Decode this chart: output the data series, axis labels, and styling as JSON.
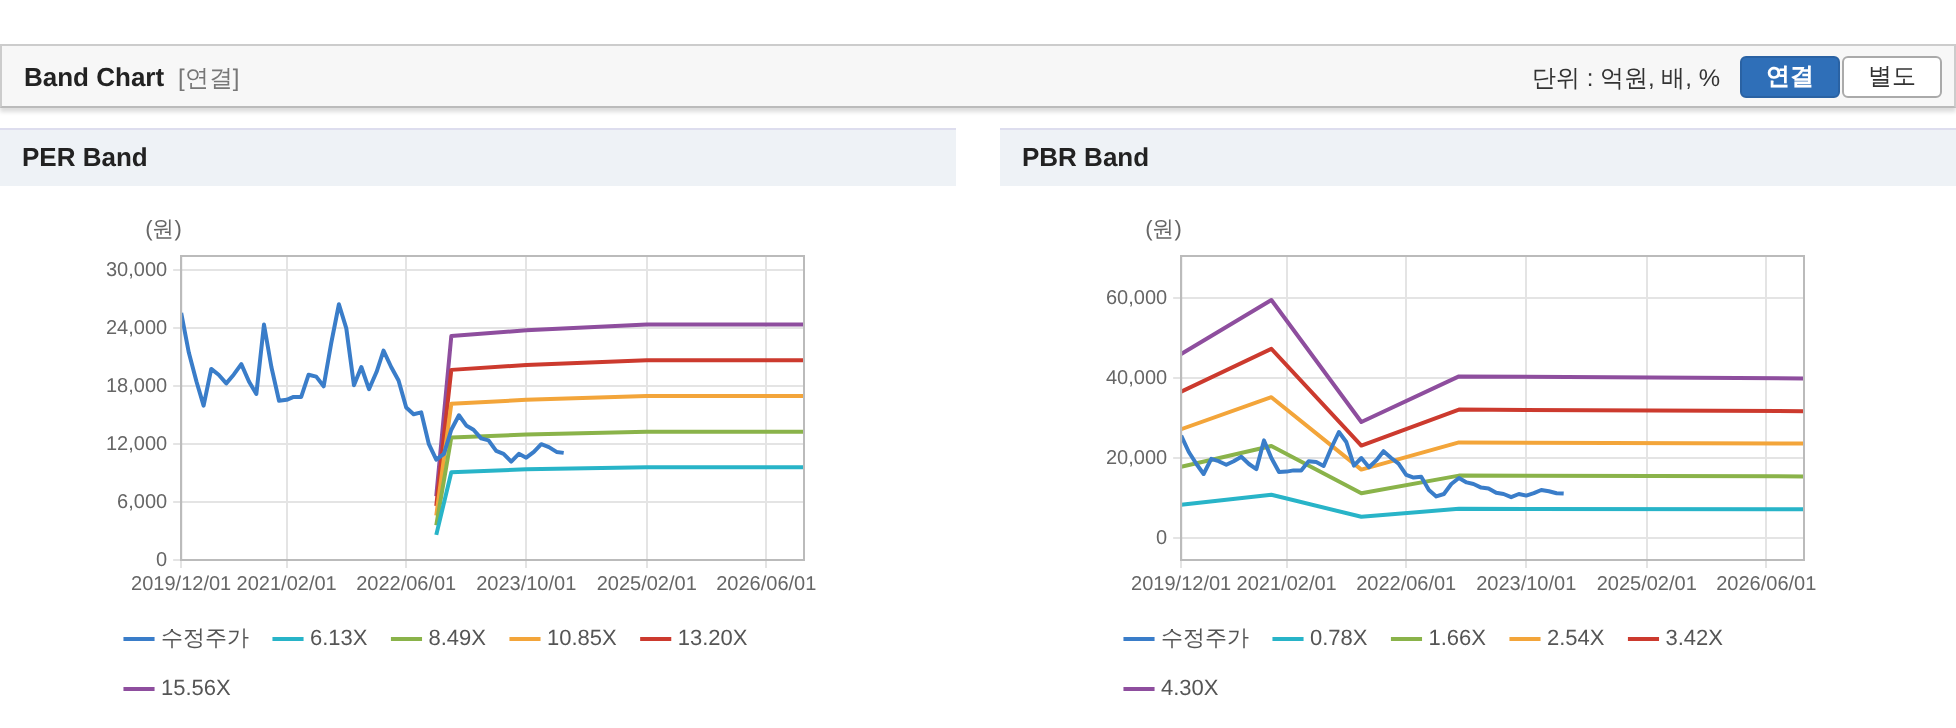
{
  "chart_data": [
    {
      "type": "other",
      "title": "Band Chart",
      "annotations": [
        "[연결]",
        "단위 : 억원, 배, %",
        "연결",
        "별도"
      ]
    },
    {
      "type": "line",
      "title": "PER Band",
      "ylabel": "(원)",
      "legend": "bottom",
      "grid": true,
      "marker": "none",
      "line_style": "solid",
      "x": [
        "2019-12-01",
        "2020-01-01",
        "2020-02-01",
        "2020-03-01",
        "2020-04-01",
        "2020-05-01",
        "2020-06-01",
        "2020-07-01",
        "2020-08-01",
        "2020-09-01",
        "2020-10-01",
        "2020-11-01",
        "2020-12-01",
        "2021-01-01",
        "2021-02-01",
        "2021-03-01",
        "2021-04-01",
        "2021-05-01",
        "2021-06-01",
        "2021-07-01",
        "2021-08-01",
        "2021-09-01",
        "2021-10-01",
        "2021-11-01",
        "2021-12-01",
        "2022-01-01",
        "2022-02-01",
        "2022-03-01",
        "2022-04-01",
        "2022-05-01",
        "2022-06-01",
        "2022-07-01",
        "2022-08-01",
        "2022-09-01",
        "2022-10-01",
        "2022-11-01",
        "2022-12-01",
        "2023-01-01",
        "2023-02-01",
        "2023-03-01",
        "2023-04-01",
        "2023-05-01",
        "2023-06-01",
        "2023-07-01",
        "2023-08-01",
        "2023-09-01",
        "2023-10-01",
        "2023-11-01",
        "2023-12-01",
        "2024-01-01",
        "2024-02-01",
        "2024-03-01"
      ],
      "series": [
        {
          "name": "수정주가",
          "color": "#3a7dc9",
          "values": [
            25600,
            21500,
            18500,
            16000,
            19800,
            19200,
            18300,
            19200,
            20300,
            18500,
            17200,
            24400,
            20000,
            16500,
            16600,
            16900,
            16900,
            19200,
            19000,
            18000,
            22500,
            26500,
            24000,
            18100,
            20000,
            17700,
            19500,
            21700,
            20000,
            18600,
            15800,
            15100,
            15300,
            12000,
            10400,
            11000,
            13500,
            15000,
            13900,
            13500,
            12600,
            12400,
            11300,
            11000,
            10200,
            11000,
            10600,
            11200,
            12000,
            11700,
            11200,
            11100
          ]
        },
        {
          "name": "6.13X",
          "color": "#28b4c8",
          "x": [
            "2022-10-01",
            "2022-12-01",
            "2023-10-01",
            "2025-02-01",
            "2026-11-01"
          ],
          "values": [
            2600,
            9100,
            9400,
            9600,
            9600
          ]
        },
        {
          "name": "8.49X",
          "color": "#8ab34a",
          "x": [
            "2022-10-01",
            "2022-12-01",
            "2023-10-01",
            "2025-02-01",
            "2026-11-01"
          ],
          "values": [
            3600,
            12700,
            13000,
            13300,
            13300
          ]
        },
        {
          "name": "10.85X",
          "color": "#f3a53a",
          "x": [
            "2022-10-01",
            "2022-12-01",
            "2023-10-01",
            "2025-02-01",
            "2026-11-01"
          ],
          "values": [
            4600,
            16200,
            16600,
            17000,
            17000
          ]
        },
        {
          "name": "13.20X",
          "color": "#cc3a2e",
          "x": [
            "2022-10-01",
            "2022-12-01",
            "2023-10-01",
            "2025-02-01",
            "2026-11-01"
          ],
          "values": [
            5600,
            19700,
            20200,
            20700,
            20700
          ]
        },
        {
          "name": "15.56X",
          "color": "#8e4e9e",
          "x": [
            "2022-10-01",
            "2022-12-01",
            "2023-10-01",
            "2025-02-01",
            "2026-11-01"
          ],
          "values": [
            6600,
            23200,
            23800,
            24400,
            24400
          ]
        }
      ],
      "xlim": [
        "2019-12-01",
        "2026-11-01"
      ],
      "xticks": [
        {
          "value": "2019-12-01",
          "label": "2019/12/01"
        },
        {
          "value": "2021-02-01",
          "label": "2021/02/01"
        },
        {
          "value": "2022-06-01",
          "label": "2022/06/01"
        },
        {
          "value": "2023-10-01",
          "label": "2023/10/01"
        },
        {
          "value": "2025-02-01",
          "label": "2025/02/01"
        },
        {
          "value": "2026-06-01",
          "label": "2026/06/01"
        }
      ],
      "ylim": [
        0,
        31500
      ],
      "yticks": [
        0,
        {
          "value": 6000,
          "label": "6,000"
        },
        {
          "value": 12000,
          "label": "12,000"
        },
        {
          "value": 18000,
          "label": "18,000"
        },
        {
          "value": 24000,
          "label": "24,000"
        },
        {
          "value": 30000,
          "label": "30,000"
        }
      ]
    },
    {
      "type": "line",
      "title": "PBR Band",
      "ylabel": "(원)",
      "legend": "bottom",
      "grid": true,
      "marker": "none",
      "line_style": "solid",
      "x": [
        "2019-12-01",
        "2020-01-01",
        "2020-02-01",
        "2020-03-01",
        "2020-04-01",
        "2020-05-01",
        "2020-06-01",
        "2020-07-01",
        "2020-08-01",
        "2020-09-01",
        "2020-10-01",
        "2020-11-01",
        "2020-12-01",
        "2021-01-01",
        "2021-02-01",
        "2021-03-01",
        "2021-04-01",
        "2021-05-01",
        "2021-06-01",
        "2021-07-01",
        "2021-08-01",
        "2021-09-01",
        "2021-10-01",
        "2021-11-01",
        "2021-12-01",
        "2022-01-01",
        "2022-02-01",
        "2022-03-01",
        "2022-04-01",
        "2022-05-01",
        "2022-06-01",
        "2022-07-01",
        "2022-08-01",
        "2022-09-01",
        "2022-10-01",
        "2022-11-01",
        "2022-12-01",
        "2023-01-01",
        "2023-02-01",
        "2023-03-01",
        "2023-04-01",
        "2023-05-01",
        "2023-06-01",
        "2023-07-01",
        "2023-08-01",
        "2023-09-01",
        "2023-10-01",
        "2023-11-01",
        "2023-12-01",
        "2024-01-01",
        "2024-02-01",
        "2024-03-01"
      ],
      "series": [
        {
          "name": "수정주가",
          "color": "#3a7dc9",
          "values": [
            25600,
            21500,
            18500,
            16000,
            19800,
            19200,
            18300,
            19200,
            20300,
            18500,
            17200,
            24400,
            20000,
            16500,
            16600,
            16900,
            16900,
            19200,
            19000,
            18000,
            22500,
            26500,
            24000,
            18100,
            20000,
            17700,
            19500,
            21700,
            20000,
            18600,
            15800,
            15100,
            15300,
            12000,
            10400,
            11000,
            13500,
            15000,
            13900,
            13500,
            12600,
            12400,
            11300,
            11000,
            10200,
            11000,
            10600,
            11200,
            12000,
            11700,
            11200,
            11100
          ]
        },
        {
          "name": "0.78X",
          "color": "#28b4c8",
          "x": [
            "2019-12-01",
            "2020-12-01",
            "2021-12-01",
            "2023-01-01",
            "2026-11-01"
          ],
          "values": [
            8300,
            10800,
            5300,
            7300,
            7200
          ]
        },
        {
          "name": "1.66X",
          "color": "#8ab34a",
          "x": [
            "2019-12-01",
            "2020-12-01",
            "2021-12-01",
            "2023-01-01",
            "2026-11-01"
          ],
          "values": [
            17800,
            23000,
            11200,
            15600,
            15400
          ]
        },
        {
          "name": "2.54X",
          "color": "#f3a53a",
          "x": [
            "2019-12-01",
            "2020-12-01",
            "2021-12-01",
            "2023-01-01",
            "2026-11-01"
          ],
          "values": [
            27200,
            35200,
            17100,
            23900,
            23600
          ]
        },
        {
          "name": "3.42X",
          "color": "#cc3a2e",
          "x": [
            "2019-12-01",
            "2020-12-01",
            "2021-12-01",
            "2023-01-01",
            "2026-11-01"
          ],
          "values": [
            36600,
            47300,
            23100,
            32100,
            31700
          ]
        },
        {
          "name": "4.30X",
          "color": "#8e4e9e",
          "x": [
            "2019-12-01",
            "2020-12-01",
            "2021-12-01",
            "2023-01-01",
            "2026-11-01"
          ],
          "values": [
            46000,
            59500,
            29000,
            40400,
            39900
          ]
        }
      ],
      "xlim": [
        "2019-12-01",
        "2026-11-01"
      ],
      "xticks": [
        {
          "value": "2019-12-01",
          "label": "2019/12/01"
        },
        {
          "value": "2021-02-01",
          "label": "2021/02/01"
        },
        {
          "value": "2022-06-01",
          "label": "2022/06/01"
        },
        {
          "value": "2023-10-01",
          "label": "2023/10/01"
        },
        {
          "value": "2025-02-01",
          "label": "2025/02/01"
        },
        {
          "value": "2026-06-01",
          "label": "2026/06/01"
        }
      ],
      "ylim": [
        -5500,
        70500
      ],
      "yticks": [
        0,
        {
          "value": 20000,
          "label": "20,000"
        },
        {
          "value": 40000,
          "label": "40,000"
        },
        {
          "value": 60000,
          "label": "60,000"
        }
      ]
    }
  ]
}
